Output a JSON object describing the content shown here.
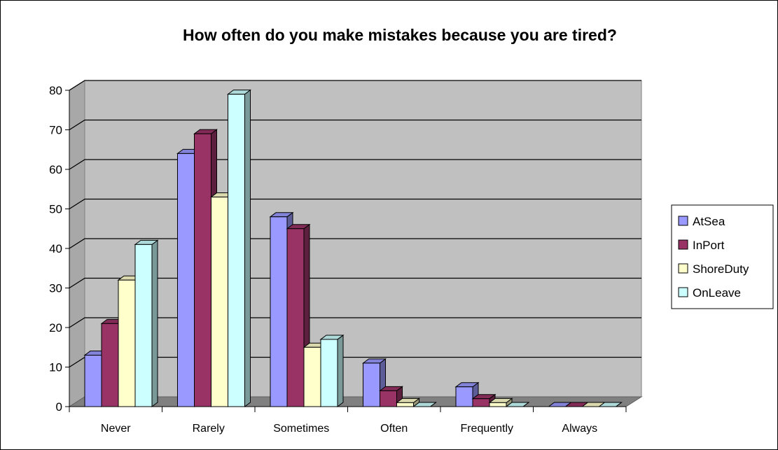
{
  "chart_data": {
    "type": "bar",
    "title": "How often do you make mistakes because you are tired?",
    "categories": [
      "Never",
      "Rarely",
      "Sometimes",
      "Often",
      "Frequently",
      "Always"
    ],
    "series": [
      {
        "name": "AtSea",
        "color": "#9999FF",
        "values": [
          13,
          64,
          48,
          11,
          5,
          0
        ]
      },
      {
        "name": "InPort",
        "color": "#993366",
        "values": [
          21,
          69,
          45,
          4,
          2,
          0
        ]
      },
      {
        "name": "ShoreDuty",
        "color": "#FFFFCC",
        "values": [
          32,
          53,
          15,
          1,
          1,
          0
        ]
      },
      {
        "name": "OnLeave",
        "color": "#CCFFFF",
        "values": [
          41,
          79,
          17,
          0,
          0,
          0
        ]
      }
    ],
    "yticks": [
      "0",
      "10",
      "20",
      "30",
      "40",
      "50",
      "60",
      "70",
      "80"
    ],
    "ylim": [
      0,
      80
    ],
    "xlabel": "",
    "ylabel": "",
    "legend_position": "right",
    "grid": true,
    "wall_color": "#C0C0C0",
    "floor_color": "#808080"
  }
}
